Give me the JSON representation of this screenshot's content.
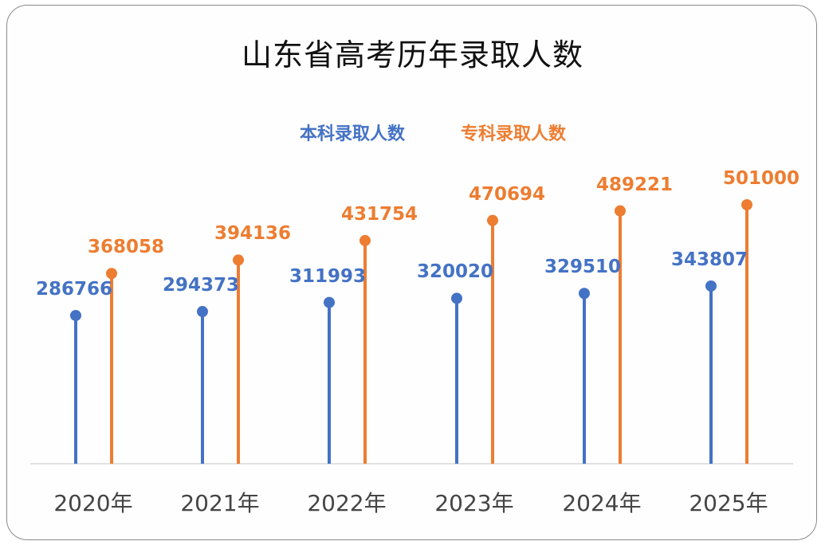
{
  "title": "山东省高考历年录取人数",
  "colors": {
    "bachelor": "#4472C4",
    "associate": "#ED7D31",
    "axis": "#D9D9D9",
    "xlabel": "#444444"
  },
  "legend": [
    {
      "label": "本科录取人数",
      "color": "#4472C4"
    },
    {
      "label": "专科录取人数",
      "color": "#ED7D31"
    }
  ],
  "x_labels": [
    "2020年",
    "2021年",
    "2022年",
    "2023年",
    "2024年",
    "2025年"
  ],
  "value_labels": {
    "bachelor": [
      "286766",
      "294373",
      "311993",
      "320020",
      "329510",
      "343807"
    ],
    "associate": [
      "368058",
      "394136",
      "431754",
      "470694",
      "489221",
      "501000"
    ]
  },
  "chart_data": {
    "type": "lollipop",
    "title": "山东省高考历年录取人数",
    "xlabel": "",
    "ylabel": "",
    "categories": [
      "2020年",
      "2021年",
      "2022年",
      "2023年",
      "2024年",
      "2025年"
    ],
    "series": [
      {
        "name": "本科录取人数",
        "color": "#4472C4",
        "values": [
          286766,
          294373,
          311993,
          320020,
          329510,
          343807
        ]
      },
      {
        "name": "专科录取人数",
        "color": "#ED7D31",
        "values": [
          368058,
          394136,
          431754,
          470694,
          489221,
          501000
        ]
      }
    ],
    "legend_position": "top",
    "grid": false,
    "y_axis_visible": false,
    "data_labels": true
  }
}
